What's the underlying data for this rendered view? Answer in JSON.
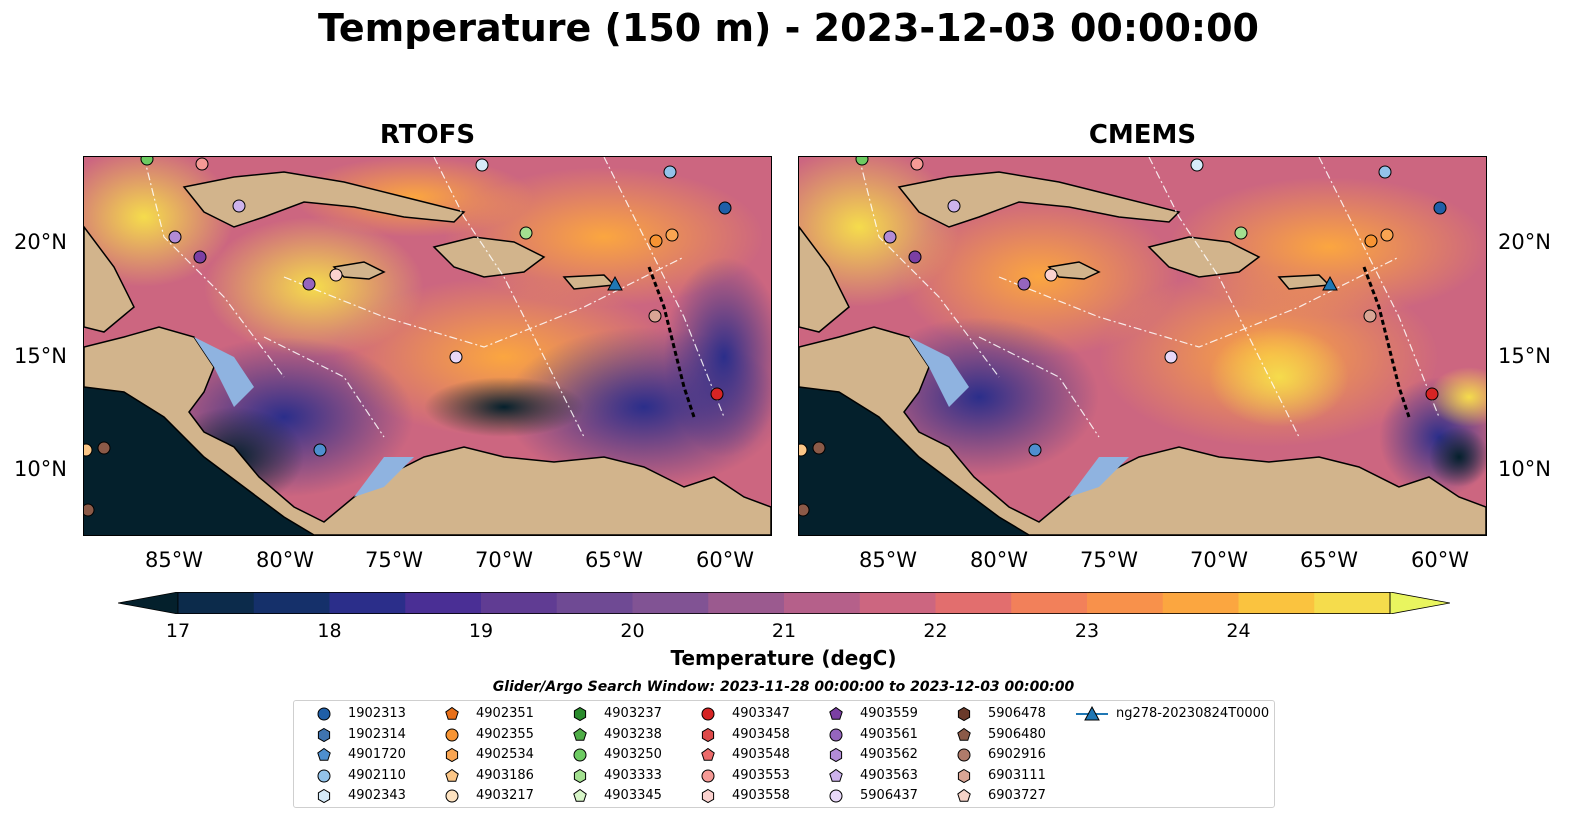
{
  "title": "Temperature (150 m) - 2023-12-03 00:00:00",
  "panels": [
    {
      "title": "RTOFS"
    },
    {
      "title": "CMEMS"
    }
  ],
  "lat_labels": [
    "20°N",
    "15°N",
    "10°N"
  ],
  "lon_labels": [
    "85°W",
    "80°W",
    "75°W",
    "70°W",
    "65°W",
    "60°W"
  ],
  "colorbar": {
    "label": "Temperature (degC)",
    "ticks": [
      "17",
      "18",
      "19",
      "20",
      "21",
      "22",
      "23",
      "24"
    ],
    "colors": [
      "#04202c",
      "#0c2b4b",
      "#15306a",
      "#2b2e8a",
      "#4a2f95",
      "#603c93",
      "#6f4a94",
      "#815394",
      "#9b5a8f",
      "#b5608a",
      "#cc6680",
      "#e26e6e",
      "#f2805a",
      "#f8914b",
      "#fba640",
      "#fac33f",
      "#f5dc4c",
      "#e9f55f"
    ],
    "extend": "both"
  },
  "search_window": "Glider/Argo Search Window: 2023-11-28 00:00:00 to 2023-12-03 00:00:00",
  "legend": [
    {
      "label": "1902313",
      "marker": "circle",
      "color": "#1f5fa8"
    },
    {
      "label": "1902314",
      "marker": "hexagon",
      "color": "#3f74b0"
    },
    {
      "label": "4901720",
      "marker": "pentagon",
      "color": "#4e8fcf"
    },
    {
      "label": "4902110",
      "marker": "circle",
      "color": "#93c3ea"
    },
    {
      "label": "4902343",
      "marker": "hexagon",
      "color": "#d6ebf9"
    },
    {
      "label": "4902351",
      "marker": "pentagon",
      "color": "#e8701a"
    },
    {
      "label": "4902355",
      "marker": "circle",
      "color": "#f79433"
    },
    {
      "label": "4902534",
      "marker": "hexagon",
      "color": "#f9a552"
    },
    {
      "label": "4903186",
      "marker": "pentagon",
      "color": "#fbc687"
    },
    {
      "label": "4903217",
      "marker": "circle",
      "color": "#fde2c0"
    },
    {
      "label": "4903237",
      "marker": "hexagon",
      "color": "#2a8b2c"
    },
    {
      "label": "4903238",
      "marker": "pentagon",
      "color": "#4fad47"
    },
    {
      "label": "4903250",
      "marker": "circle",
      "color": "#6dcb62"
    },
    {
      "label": "4903333",
      "marker": "hexagon",
      "color": "#a3e090"
    },
    {
      "label": "4903345",
      "marker": "pentagon",
      "color": "#d7f5c8"
    },
    {
      "label": "4903347",
      "marker": "circle",
      "color": "#d62424"
    },
    {
      "label": "4903458",
      "marker": "hexagon",
      "color": "#de4a4a"
    },
    {
      "label": "4903548",
      "marker": "pentagon",
      "color": "#ec6b6b"
    },
    {
      "label": "4903553",
      "marker": "circle",
      "color": "#f59a96"
    },
    {
      "label": "4903558",
      "marker": "hexagon",
      "color": "#fbd2cf"
    },
    {
      "label": "4903559",
      "marker": "pentagon",
      "color": "#7b3fa3"
    },
    {
      "label": "4903561",
      "marker": "circle",
      "color": "#9565be"
    },
    {
      "label": "4903562",
      "marker": "hexagon",
      "color": "#b28bd6"
    },
    {
      "label": "4903563",
      "marker": "pentagon",
      "color": "#cdb3ec"
    },
    {
      "label": "5906437",
      "marker": "circle",
      "color": "#e8d8f8"
    },
    {
      "label": "5906478",
      "marker": "hexagon",
      "color": "#6a3a2a"
    },
    {
      "label": "5906480",
      "marker": "pentagon",
      "color": "#8b5a48"
    },
    {
      "label": "6902916",
      "marker": "circle",
      "color": "#b07b6a"
    },
    {
      "label": "6903111",
      "marker": "hexagon",
      "color": "#d9a595"
    },
    {
      "label": "6903727",
      "marker": "pentagon",
      "color": "#f5d3c8"
    },
    {
      "label": "ng278-20230824T0000",
      "marker": "triangle-line",
      "color": "#1f77b4"
    }
  ]
}
